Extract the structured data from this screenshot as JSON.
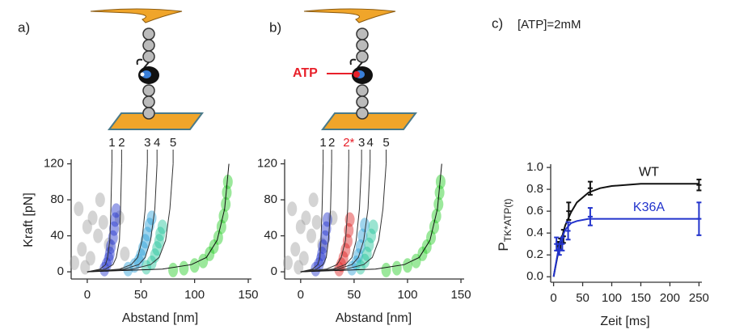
{
  "chart_data": [
    {
      "type": "line",
      "panel_label": "a)",
      "xlabel": "Abstand [nm]",
      "ylabel": "Kraft [pN]",
      "xlim": [
        -15,
        153
      ],
      "ylim": [
        -8,
        125
      ],
      "xticks": [
        0,
        50,
        100,
        150
      ],
      "yticks": [
        0,
        40,
        80,
        120
      ],
      "clouds": [
        {
          "color": "#a0a0a0",
          "x": [
            -12,
            -5,
            0,
            5,
            10,
            -8,
            3,
            12,
            20,
            30,
            35,
            -2,
            15
          ],
          "values": [
            10,
            25,
            50,
            60,
            40,
            70,
            15,
            80,
            30,
            60,
            20,
            5,
            55
          ]
        },
        {
          "color": "#2233cc",
          "x": [
            16,
            18,
            20,
            21,
            22,
            24,
            25,
            26,
            27
          ],
          "values": [
            3,
            8,
            14,
            20,
            28,
            38,
            48,
            58,
            68
          ]
        },
        {
          "color": "#2aa0d8",
          "x": [
            38,
            44,
            48,
            50,
            52,
            54,
            56,
            58,
            60
          ],
          "values": [
            3,
            7,
            12,
            18,
            26,
            34,
            42,
            52,
            60
          ]
        },
        {
          "color": "#22c49a",
          "x": [
            55,
            60,
            63,
            65,
            67,
            68,
            70
          ],
          "values": [
            5,
            10,
            18,
            26,
            34,
            42,
            50
          ]
        },
        {
          "color": "#22cc22",
          "x": [
            80,
            90,
            100,
            108,
            114,
            118,
            122,
            125,
            127,
            129,
            130,
            131
          ],
          "values": [
            2,
            4,
            7,
            12,
            20,
            28,
            38,
            50,
            62,
            75,
            88,
            100
          ]
        }
      ],
      "series": [
        {
          "name": "1",
          "color": "#333333",
          "x": [
            0,
            12,
            17,
            19,
            21,
            22,
            23
          ],
          "values": [
            0,
            3,
            8,
            16,
            35,
            70,
            120
          ]
        },
        {
          "name": "2",
          "color": "#333333",
          "x": [
            0,
            17,
            24,
            27,
            30,
            31,
            32
          ],
          "values": [
            0,
            3,
            8,
            16,
            35,
            70,
            120
          ]
        },
        {
          "name": "3",
          "color": "#333333",
          "x": [
            0,
            30,
            41,
            47,
            51,
            54,
            56
          ],
          "values": [
            0,
            3,
            8,
            16,
            35,
            70,
            120
          ]
        },
        {
          "name": "4",
          "color": "#333333",
          "x": [
            0,
            34,
            48,
            54,
            59,
            63,
            65
          ],
          "values": [
            0,
            3,
            8,
            16,
            35,
            70,
            120
          ]
        },
        {
          "name": "5",
          "color": "#333333",
          "x": [
            0,
            42,
            59,
            67,
            73,
            77,
            80
          ],
          "values": [
            0,
            3,
            8,
            16,
            35,
            70,
            120
          ]
        },
        {
          "color": "#111111",
          "x": [
            0,
            70,
            97,
            111,
            121,
            128,
            132
          ],
          "values": [
            0,
            3,
            8,
            16,
            35,
            70,
            120
          ]
        }
      ]
    },
    {
      "type": "line",
      "panel_label": "b)",
      "xlabel": "Abstand [nm]",
      "illustration_label": "ATP",
      "xlim": [
        -15,
        153
      ],
      "ylim": [
        -8,
        125
      ],
      "xticks": [
        0,
        50,
        100,
        150
      ],
      "yticks": [
        0,
        40,
        80,
        120
      ],
      "clouds": [
        {
          "color": "#a0a0a0",
          "x": [
            -12,
            -5,
            0,
            5,
            10,
            -8,
            3,
            12,
            20,
            30,
            -2,
            15
          ],
          "values": [
            10,
            25,
            50,
            60,
            40,
            70,
            15,
            80,
            30,
            60,
            5,
            55
          ]
        },
        {
          "color": "#2233cc",
          "x": [
            14,
            17,
            19,
            20,
            21,
            23,
            24,
            25
          ],
          "values": [
            3,
            8,
            14,
            20,
            28,
            38,
            48,
            58
          ]
        },
        {
          "color": "#dd2222",
          "x": [
            36,
            38,
            40,
            42,
            44,
            45,
            46
          ],
          "values": [
            3,
            8,
            15,
            24,
            34,
            46,
            58
          ]
        },
        {
          "color": "#2aa0d8",
          "x": [
            48,
            52,
            54,
            56,
            58,
            60
          ],
          "values": [
            4,
            10,
            18,
            28,
            40,
            52
          ]
        },
        {
          "color": "#22c49a",
          "x": [
            56,
            60,
            62,
            64,
            66,
            68
          ],
          "values": [
            5,
            12,
            20,
            30,
            40,
            50
          ]
        },
        {
          "color": "#22cc22",
          "x": [
            80,
            90,
            100,
            108,
            114,
            118,
            122,
            125,
            127,
            129,
            130,
            131
          ],
          "values": [
            2,
            4,
            7,
            12,
            20,
            28,
            38,
            50,
            62,
            75,
            88,
            100
          ]
        }
      ],
      "series": [
        {
          "name": "1",
          "color": "#333333",
          "x": [
            0,
            11,
            16,
            18,
            19,
            20,
            21
          ],
          "values": [
            0,
            3,
            8,
            16,
            35,
            70,
            120
          ]
        },
        {
          "name": "2",
          "color": "#333333",
          "x": [
            0,
            15,
            21,
            24,
            26,
            28,
            29
          ],
          "values": [
            0,
            3,
            8,
            16,
            35,
            70,
            120
          ]
        },
        {
          "name": "2*",
          "color": "#333333",
          "label_color": "#e8202a",
          "x": [
            0,
            24,
            34,
            38,
            42,
            44,
            45
          ],
          "values": [
            0,
            3,
            8,
            16,
            35,
            70,
            120
          ]
        },
        {
          "name": "3",
          "color": "#333333",
          "x": [
            0,
            30,
            42,
            48,
            52,
            55,
            57
          ],
          "values": [
            0,
            3,
            8,
            16,
            35,
            70,
            120
          ]
        },
        {
          "name": "4",
          "color": "#333333",
          "x": [
            0,
            34,
            48,
            54,
            59,
            63,
            65
          ],
          "values": [
            0,
            3,
            8,
            16,
            35,
            70,
            120
          ]
        },
        {
          "name": "5",
          "color": "#333333",
          "x": [
            0,
            42,
            59,
            67,
            73,
            77,
            80
          ],
          "values": [
            0,
            3,
            8,
            16,
            35,
            70,
            120
          ]
        },
        {
          "color": "#111111",
          "x": [
            0,
            70,
            97,
            111,
            121,
            128,
            132
          ],
          "values": [
            0,
            3,
            8,
            16,
            35,
            70,
            120
          ]
        }
      ]
    },
    {
      "type": "errorbar",
      "panel_label": "c)",
      "title": "[ATP]=2mM",
      "xlabel": "Zeit [ms]",
      "ylabel": "P",
      "ylabel_sub": "TK*ATP(t)",
      "xlim": [
        -5,
        255
      ],
      "ylim": [
        -0.05,
        1.03
      ],
      "xticks": [
        0,
        50,
        100,
        150,
        200,
        250
      ],
      "yticks": [
        {
          "value": 0,
          "label": "0.0"
        },
        {
          "value": 0.2,
          "label": "0.2"
        },
        {
          "value": 0.4,
          "label": "0.4"
        },
        {
          "value": 0.6,
          "label": "0.6"
        },
        {
          "value": 0.8,
          "label": "0.8"
        },
        {
          "value": 1,
          "label": "1.0"
        }
      ],
      "series": [
        {
          "name": "WT",
          "color": "#111111",
          "x": [
            8,
            12,
            17,
            26,
            63,
            250
          ],
          "values": [
            0.28,
            0.3,
            0.37,
            0.6,
            0.81,
            0.84
          ],
          "errors": [
            0.04,
            0.05,
            0.06,
            0.08,
            0.06,
            0.05
          ],
          "fit": {
            "x": [
              0,
              10,
              20,
              30,
              40,
              60,
              80,
              100,
              150,
              250
            ],
            "values": [
              0,
              0.28,
              0.47,
              0.59,
              0.68,
              0.77,
              0.81,
              0.83,
              0.85,
              0.85
            ]
          }
        },
        {
          "name": "K36A",
          "color": "#2233cc",
          "x": [
            5,
            10,
            15,
            25,
            63,
            250
          ],
          "values": [
            0.3,
            0.25,
            0.3,
            0.42,
            0.55,
            0.53
          ],
          "errors": [
            0.06,
            0.05,
            0.06,
            0.08,
            0.08,
            0.15
          ],
          "fit": {
            "x": [
              0,
              10,
              20,
              30,
              40,
              60,
              80,
              100,
              150,
              250
            ],
            "values": [
              0,
              0.3,
              0.43,
              0.49,
              0.51,
              0.53,
              0.53,
              0.53,
              0.53,
              0.53
            ]
          }
        }
      ]
    }
  ]
}
